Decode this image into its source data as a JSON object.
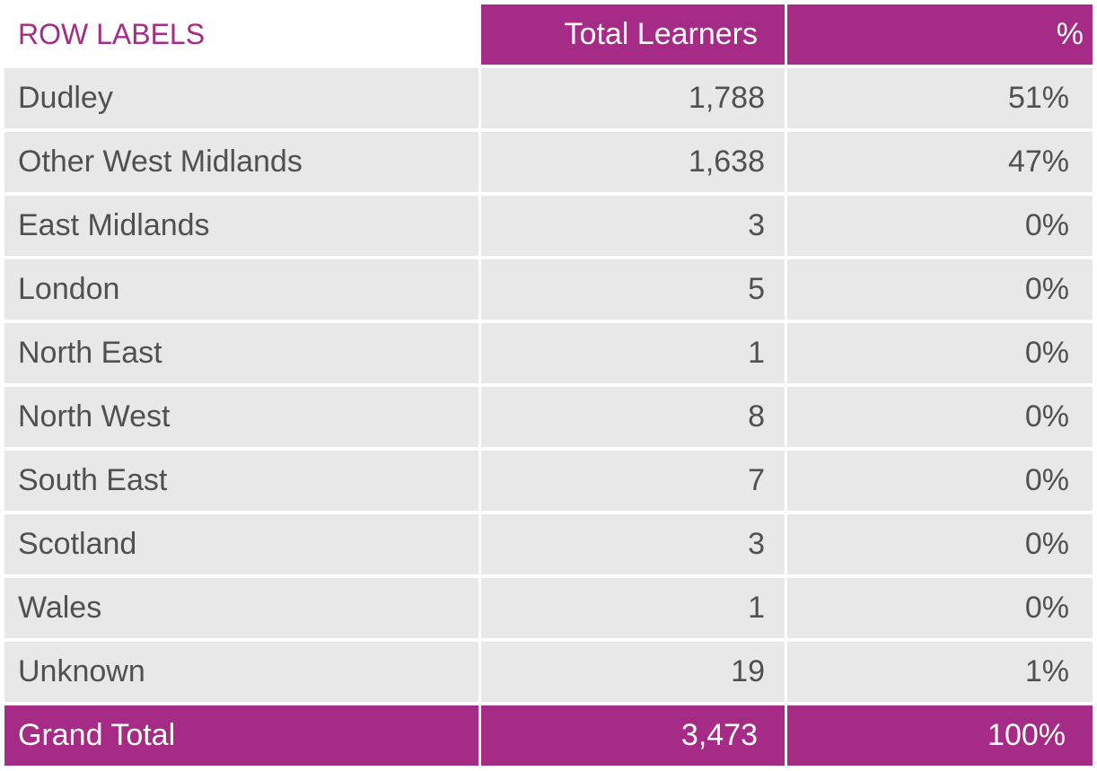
{
  "chart_data": {
    "type": "table",
    "columns": [
      "ROW LABELS",
      "Total Learners",
      "%"
    ],
    "rows": [
      {
        "label": "Dudley",
        "learners": "1,788",
        "pct": "51%"
      },
      {
        "label": "Other West Midlands",
        "learners": "1,638",
        "pct": "47%"
      },
      {
        "label": "East Midlands",
        "learners": "3",
        "pct": "0%"
      },
      {
        "label": "London",
        "learners": "5",
        "pct": "0%"
      },
      {
        "label": "North East",
        "learners": "1",
        "pct": "0%"
      },
      {
        "label": "North West",
        "learners": "8",
        "pct": "0%"
      },
      {
        "label": "South East",
        "learners": "7",
        "pct": "0%"
      },
      {
        "label": "Scotland",
        "learners": "3",
        "pct": "0%"
      },
      {
        "label": "Wales",
        "learners": "1",
        "pct": "0%"
      },
      {
        "label": "Unknown",
        "learners": "19",
        "pct": "1%"
      }
    ],
    "total": {
      "label": "Grand Total",
      "learners": "3,473",
      "pct": "100%"
    }
  },
  "colors": {
    "accent": "#a62b87",
    "row_background": "#e8e8e8",
    "text": "#505050",
    "header_text": "#ffffff"
  }
}
